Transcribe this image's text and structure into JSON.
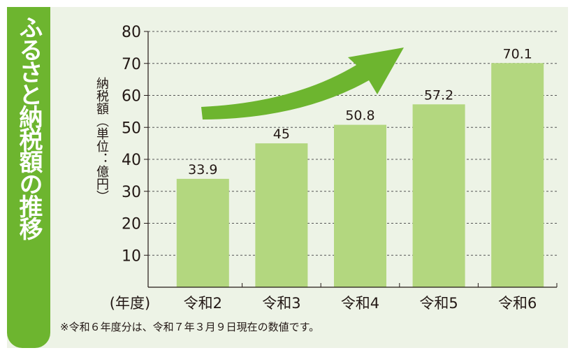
{
  "title": "ふるさと納税額の推移",
  "footnote": "※令和６年度分は、令和７年３月９日現在の数値です。",
  "colors": {
    "panel_bg": "#edf3e6",
    "title_green": "#6db52f",
    "bar": "#b3d77f",
    "arrow": "#6db52f",
    "text": "#231815",
    "grid": "#555555"
  },
  "icons": [
    "growth-arrow-icon"
  ],
  "chart_data": {
    "type": "bar",
    "title": "",
    "xlabel": "(年度)",
    "ylabel": "納税額（単位：億円）",
    "categories": [
      "令和2",
      "令和3",
      "令和4",
      "令和5",
      "令和6"
    ],
    "values": [
      33.9,
      45,
      50.8,
      57.2,
      70.1
    ],
    "value_labels": [
      "33.9",
      "45",
      "50.8",
      "57.2",
      "70.1"
    ],
    "ylim": [
      0,
      80
    ],
    "yticks": [
      10,
      20,
      30,
      40,
      50,
      60,
      70,
      80
    ],
    "ytick_labels": [
      "10",
      "20",
      "30",
      "40",
      "50",
      "60",
      "70",
      "80"
    ],
    "grid": true,
    "grid_style": "dashed horizontal",
    "legend": "none"
  }
}
